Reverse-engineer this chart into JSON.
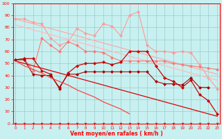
{
  "x": [
    0,
    1,
    2,
    3,
    4,
    5,
    6,
    7,
    8,
    9,
    10,
    11,
    12,
    13,
    14,
    15,
    16,
    17,
    18,
    19,
    20,
    21,
    22,
    23
  ],
  "series": [
    {
      "color": "#ff9999",
      "linewidth": 0.8,
      "marker": "D",
      "markersize": 2.0,
      "values": [
        87,
        87,
        84,
        83,
        71,
        65,
        68,
        79,
        75,
        73,
        83,
        81,
        73,
        90,
        93,
        65,
        60,
        60,
        59,
        60,
        59,
        49,
        38,
        29
      ]
    },
    {
      "color": "#ffaaaa",
      "linewidth": 0.9,
      "marker": null,
      "markersize": 0,
      "values": [
        87,
        85,
        83,
        81,
        79,
        77,
        75,
        73,
        71,
        69,
        67,
        65,
        63,
        61,
        59,
        57,
        55,
        53,
        51,
        49,
        47,
        45,
        43,
        41
      ]
    },
    {
      "color": "#ffbbbb",
      "linewidth": 0.9,
      "marker": null,
      "markersize": 0,
      "values": [
        82,
        80,
        78,
        76,
        74,
        72,
        70,
        68,
        66,
        64,
        62,
        60,
        58,
        56,
        54,
        52,
        50,
        48,
        46,
        44,
        42,
        40,
        38,
        36
      ]
    },
    {
      "color": "#ff7777",
      "linewidth": 0.8,
      "marker": "D",
      "markersize": 2.0,
      "values": [
        53,
        54,
        44,
        71,
        65,
        60,
        68,
        65,
        60,
        60,
        59,
        55,
        52,
        52,
        52,
        52,
        52,
        52,
        50,
        49,
        48,
        47,
        46,
        45
      ]
    },
    {
      "color": "#cc0000",
      "linewidth": 0.9,
      "marker": "D",
      "markersize": 2.0,
      "values": [
        53,
        54,
        54,
        44,
        41,
        29,
        42,
        48,
        50,
        50,
        51,
        49,
        51,
        60,
        60,
        60,
        48,
        38,
        35,
        30,
        36,
        24,
        19,
        8
      ]
    },
    {
      "color": "#dd0000",
      "linewidth": 0.9,
      "marker": null,
      "markersize": 0,
      "values": [
        52,
        50,
        48,
        46,
        44,
        42,
        40,
        38,
        36,
        34,
        32,
        30,
        28,
        26,
        24,
        22,
        20,
        18,
        16,
        14,
        12,
        10,
        8,
        6
      ]
    },
    {
      "color": "#aa0000",
      "linewidth": 0.8,
      "marker": "D",
      "markersize": 2.0,
      "values": [
        53,
        53,
        41,
        40,
        40,
        30,
        41,
        41,
        43,
        43,
        43,
        43,
        43,
        43,
        43,
        43,
        35,
        33,
        33,
        32,
        38,
        30,
        30,
        null
      ]
    },
    {
      "color": "#ff4444",
      "linewidth": 0.9,
      "marker": null,
      "markersize": 0,
      "values": [
        52,
        48,
        45,
        42,
        38,
        35,
        32,
        28,
        25,
        22,
        18,
        15,
        12,
        8,
        null,
        null,
        null,
        null,
        null,
        null,
        null,
        null,
        null,
        null
      ]
    }
  ],
  "xlim": [
    -0.3,
    23.3
  ],
  "ylim": [
    0,
    100
  ],
  "yticks": [
    0,
    10,
    20,
    30,
    40,
    50,
    60,
    70,
    80,
    90,
    100
  ],
  "xticks": [
    0,
    1,
    2,
    3,
    4,
    5,
    6,
    7,
    8,
    9,
    10,
    11,
    12,
    13,
    14,
    15,
    16,
    17,
    18,
    19,
    20,
    21,
    22,
    23
  ],
  "xlabel": "Vent moyen/en rafales ( km/h )",
  "background_color": "#c8f0f0",
  "grid_color": "#99cccc",
  "axis_color": "#ff0000",
  "tick_color": "#ff0000",
  "label_color": "#ff0000"
}
